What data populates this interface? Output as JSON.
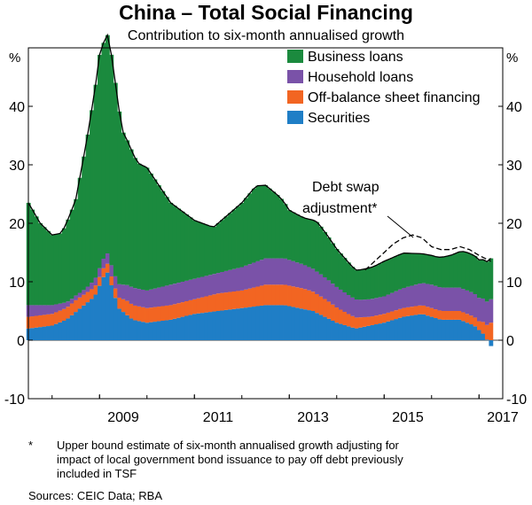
{
  "chart_data": {
    "type": "area",
    "stacked": true,
    "title": "China – Total Social Financing",
    "subtitle": "Contribution to six-month annualised growth",
    "ylabel_left": "%",
    "ylabel_right": "%",
    "ylim": [
      -10,
      50
    ],
    "yticks": [
      -10,
      0,
      10,
      20,
      30,
      40
    ],
    "xlim": [
      2007.5,
      2017.5
    ],
    "xticks": [
      2009,
      2011,
      2013,
      2015,
      2017
    ],
    "legend_position": "top-right",
    "months": 118,
    "start": "2007-07",
    "series": [
      {
        "name": "Securities",
        "color": "#1f7ec6",
        "x": [
          2007.5,
          2008.0,
          2008.3,
          2008.6,
          2008.9,
          2009.15,
          2009.4,
          2009.7,
          2010.0,
          2010.5,
          2011.0,
          2011.5,
          2012.0,
          2012.5,
          2012.9,
          2013.5,
          2014.0,
          2014.4,
          2014.7,
          2015.0,
          2015.4,
          2015.8,
          2016.2,
          2016.6,
          2016.9,
          2017.1,
          2017.25
        ],
        "values": [
          2.0,
          2.5,
          3.5,
          5.5,
          7.5,
          12.0,
          5.5,
          3.5,
          3.0,
          3.5,
          4.5,
          5.0,
          5.5,
          6.0,
          6.0,
          5.0,
          3.0,
          2.0,
          2.5,
          3.0,
          4.0,
          4.5,
          3.5,
          3.5,
          2.5,
          1.0,
          -1.0
        ]
      },
      {
        "name": "Off-balance sheet financing",
        "color": "#f26522",
        "x": [
          2007.5,
          2008.0,
          2008.5,
          2009.0,
          2009.3,
          2009.6,
          2010.0,
          2010.5,
          2011.0,
          2011.5,
          2012.0,
          2012.5,
          2012.9,
          2013.3,
          2013.8,
          2014.3,
          2014.7,
          2015.2,
          2015.7,
          2016.2,
          2016.7,
          2017.0,
          2017.25
        ],
        "values": [
          2.0,
          2.0,
          2.0,
          1.5,
          1.5,
          2.5,
          2.5,
          2.5,
          2.5,
          3.0,
          3.0,
          3.5,
          3.5,
          3.5,
          3.0,
          2.0,
          1.5,
          1.5,
          1.5,
          1.5,
          1.5,
          1.5,
          3.0
        ]
      },
      {
        "name": "Household loans",
        "color": "#7a52a8",
        "x": [
          2007.5,
          2008.0,
          2008.4,
          2008.7,
          2009.0,
          2009.3,
          2009.7,
          2010.0,
          2010.5,
          2011.0,
          2011.5,
          2012.0,
          2012.5,
          2012.9,
          2013.4,
          2014.0,
          2014.5,
          2015.0,
          2015.5,
          2016.0,
          2016.5,
          2016.9,
          2017.25
        ],
        "values": [
          2.0,
          1.5,
          0.8,
          0.8,
          1.5,
          2.0,
          3.0,
          3.0,
          3.5,
          3.5,
          3.5,
          4.0,
          4.5,
          4.5,
          4.0,
          3.5,
          3.0,
          3.0,
          3.5,
          4.0,
          4.0,
          4.0,
          4.0
        ]
      },
      {
        "name": "Business loans",
        "color": "#1b8a3e",
        "x": [
          2007.5,
          2007.75,
          2008.0,
          2008.2,
          2008.5,
          2008.75,
          2009.0,
          2009.2,
          2009.3,
          2009.5,
          2009.8,
          2010.0,
          2010.5,
          2011.0,
          2011.4,
          2011.6,
          2012.0,
          2012.3,
          2012.5,
          2012.8,
          2013.0,
          2013.3,
          2013.6,
          2014.0,
          2014.4,
          2014.8,
          2015.0,
          2015.4,
          2015.8,
          2016.1,
          2016.4,
          2016.7,
          2017.0,
          2017.25
        ],
        "values": [
          17.5,
          14.0,
          12.0,
          12.0,
          16.5,
          26.0,
          36.5,
          37.5,
          34.5,
          26.0,
          21.5,
          21.0,
          14.0,
          10.0,
          8.0,
          9.0,
          11.0,
          13.0,
          12.5,
          10.5,
          8.5,
          8.0,
          8.5,
          6.5,
          5.0,
          5.5,
          6.0,
          6.0,
          5.0,
          5.0,
          5.5,
          6.5,
          6.5,
          7.0
        ]
      }
    ],
    "debt_swap_adjustment": {
      "name": "Debt swap adjustment*",
      "x": [
        2014.6,
        2014.8,
        2015.0,
        2015.2,
        2015.4,
        2015.6,
        2015.8,
        2016.0,
        2016.2,
        2016.4,
        2016.6,
        2016.8,
        2017.0,
        2017.25
      ],
      "values": [
        12.0,
        13.5,
        15.0,
        16.5,
        17.5,
        18.0,
        17.5,
        16.0,
        15.5,
        15.5,
        16.0,
        15.5,
        14.5,
        13.5
      ]
    },
    "annotation": {
      "line1": "Debt swap",
      "line2": "adjustment*"
    }
  },
  "footnote": {
    "mark": "*",
    "line1": "Upper bound estimate of six-month annualised growth adjusting for",
    "line2": "impact of local government bond issuance to pay off debt previously",
    "line3": "included in TSF"
  },
  "sources": "Sources: CEIC Data; RBA"
}
